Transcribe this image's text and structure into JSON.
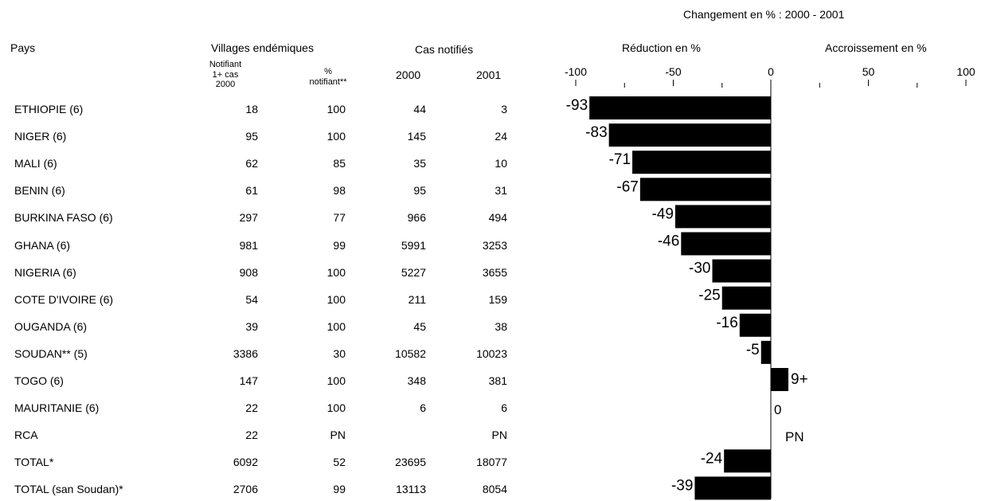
{
  "headers": {
    "change_title": "Changement en % : 2000 - 2001",
    "country": "Pays",
    "villages": "Villages endémiques",
    "notifying_line1": "Notifiant",
    "notifying_line2": "1+ cas",
    "notifying_line3": "2000",
    "pct_line1": "%",
    "pct_line2": "notifiant**",
    "cases": "Cas notifiés",
    "year_2000": "2000",
    "year_2001": "2001",
    "reduction": "Réduction en %",
    "increase": "Accroissement en %"
  },
  "rows": [
    {
      "country": "ETHIOPIE (6)",
      "villages": "18",
      "pct": "100",
      "c2000": "44",
      "c2001": "3"
    },
    {
      "country": "NIGER (6)",
      "villages": "95",
      "pct": "100",
      "c2000": "145",
      "c2001": "24"
    },
    {
      "country": "MALI (6)",
      "villages": "62",
      "pct": "85",
      "c2000": "35",
      "c2001": "10"
    },
    {
      "country": "BENIN (6)",
      "villages": "61",
      "pct": "98",
      "c2000": "95",
      "c2001": "31"
    },
    {
      "country": "BURKINA FASO (6)",
      "villages": "297",
      "pct": "77",
      "c2000": "966",
      "c2001": "494"
    },
    {
      "country": "GHANA (6)",
      "villages": "981",
      "pct": "99",
      "c2000": "5991",
      "c2001": "3253"
    },
    {
      "country": "NIGERIA (6)",
      "villages": "908",
      "pct": "100",
      "c2000": "5227",
      "c2001": "3655"
    },
    {
      "country": "COTE D'IVOIRE (6)",
      "villages": "54",
      "pct": "100",
      "c2000": "211",
      "c2001": "159"
    },
    {
      "country": "OUGANDA (6)",
      "villages": "39",
      "pct": "100",
      "c2000": "45",
      "c2001": "38"
    },
    {
      "country": "SOUDAN** (5)",
      "villages": "3386",
      "pct": "30",
      "c2000": "10582",
      "c2001": "10023"
    },
    {
      "country": "TOGO (6)",
      "villages": "147",
      "pct": "100",
      "c2000": "348",
      "c2001": "381"
    },
    {
      "country": "MAURITANIE (6)",
      "villages": "22",
      "pct": "100",
      "c2000": "6",
      "c2001": "6"
    },
    {
      "country": "RCA",
      "villages": "22",
      "pct": "PN",
      "c2000": "",
      "c2001": "PN"
    },
    {
      "country": "TOTAL*",
      "villages": "6092",
      "pct": "52",
      "c2000": "23695",
      "c2001": "18077"
    },
    {
      "country": "TOTAL (san Soudan)*",
      "villages": "2706",
      "pct": "99",
      "c2000": "13113",
      "c2001": "8054"
    }
  ],
  "chart_data": {
    "type": "bar",
    "orientation": "horizontal",
    "title": "Changement en % : 2000 - 2001",
    "xlim": [
      -100,
      100
    ],
    "x_ticks": [
      -100,
      -50,
      0,
      50,
      100
    ],
    "categories": [
      "ETHIOPIE (6)",
      "NIGER (6)",
      "MALI (6)",
      "BENIN (6)",
      "BURKINA FASO (6)",
      "GHANA (6)",
      "NIGERIA (6)",
      "COTE D'IVOIRE (6)",
      "OUGANDA (6)",
      "SOUDAN** (5)",
      "TOGO (6)",
      "MAURITANIE (6)",
      "RCA",
      "TOTAL*",
      "TOTAL (san Soudan)*"
    ],
    "values": [
      -93,
      -83,
      -71,
      -67,
      -49,
      -46,
      -30,
      -25,
      -16,
      -5,
      9,
      0,
      null,
      -24,
      -39
    ],
    "labels": [
      "-93",
      "-83",
      "-71",
      "-67",
      "-49",
      "-46",
      "-30",
      "-25",
      "-16",
      "-5",
      "9+",
      "0",
      "PN",
      "-24",
      "-39"
    ],
    "bar_color": "#000000"
  }
}
